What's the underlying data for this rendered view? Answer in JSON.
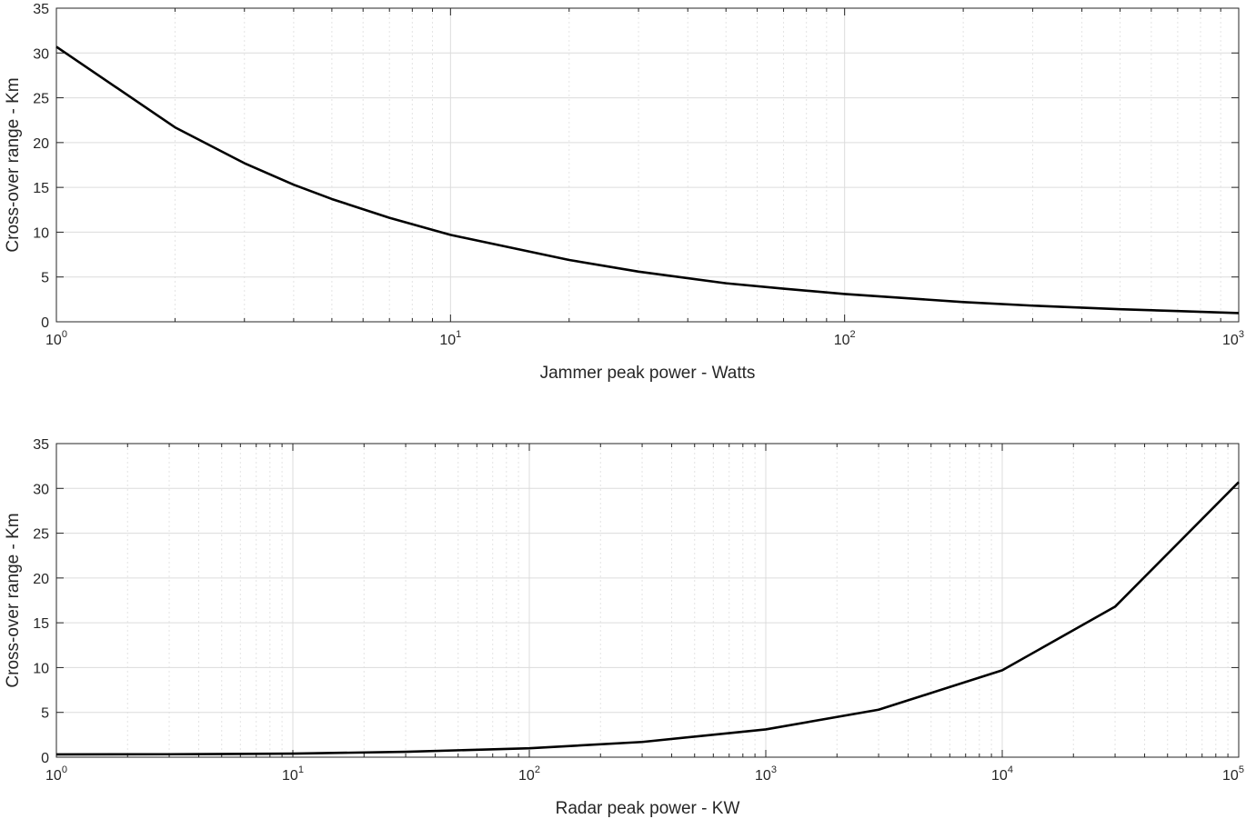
{
  "chart_data": [
    {
      "type": "line",
      "xscale": "log",
      "xlabel": "Jammer peak power - Watts",
      "ylabel": "Cross-over range - Km",
      "xlim": [
        1,
        1000
      ],
      "ylim": [
        0,
        35
      ],
      "xticks": [
        1,
        10,
        100,
        1000
      ],
      "xtick_labels": [
        [
          "10",
          "0"
        ],
        [
          "10",
          "1"
        ],
        [
          "10",
          "2"
        ],
        [
          "10",
          "3"
        ]
      ],
      "yticks": [
        0,
        5,
        10,
        15,
        20,
        25,
        30,
        35
      ],
      "ytick_labels": [
        "0",
        "5",
        "10",
        "15",
        "20",
        "25",
        "30",
        "35"
      ],
      "grid": true,
      "series": [
        {
          "color": "#000000",
          "x": [
            1,
            2,
            3,
            4,
            5,
            7,
            10,
            20,
            30,
            50,
            70,
            100,
            200,
            300,
            500,
            700,
            1000
          ],
          "y": [
            30.7,
            21.7,
            17.7,
            15.3,
            13.7,
            11.6,
            9.7,
            6.9,
            5.6,
            4.3,
            3.7,
            3.1,
            2.2,
            1.8,
            1.4,
            1.2,
            0.97
          ]
        }
      ]
    },
    {
      "type": "line",
      "xscale": "log",
      "xlabel": "Radar peak power - KW",
      "ylabel": "Cross-over range - Km",
      "xlim": [
        1,
        100000
      ],
      "ylim": [
        0,
        35
      ],
      "xticks": [
        1,
        10,
        100,
        1000,
        10000,
        100000
      ],
      "xtick_labels": [
        [
          "10",
          "0"
        ],
        [
          "10",
          "1"
        ],
        [
          "10",
          "2"
        ],
        [
          "10",
          "3"
        ],
        [
          "10",
          "4"
        ],
        [
          "10",
          "5"
        ]
      ],
      "yticks": [
        0,
        5,
        10,
        15,
        20,
        25,
        30,
        35
      ],
      "ytick_labels": [
        "0",
        "5",
        "10",
        "15",
        "20",
        "25",
        "30",
        "35"
      ],
      "grid": true,
      "series": [
        {
          "color": "#000000",
          "x": [
            1,
            3,
            10,
            30,
            100,
            300,
            1000,
            3000,
            10000,
            30000,
            100000
          ],
          "y": [
            0.31,
            0.33,
            0.4,
            0.6,
            1.0,
            1.7,
            3.1,
            5.3,
            9.7,
            16.8,
            30.7
          ]
        }
      ]
    }
  ]
}
